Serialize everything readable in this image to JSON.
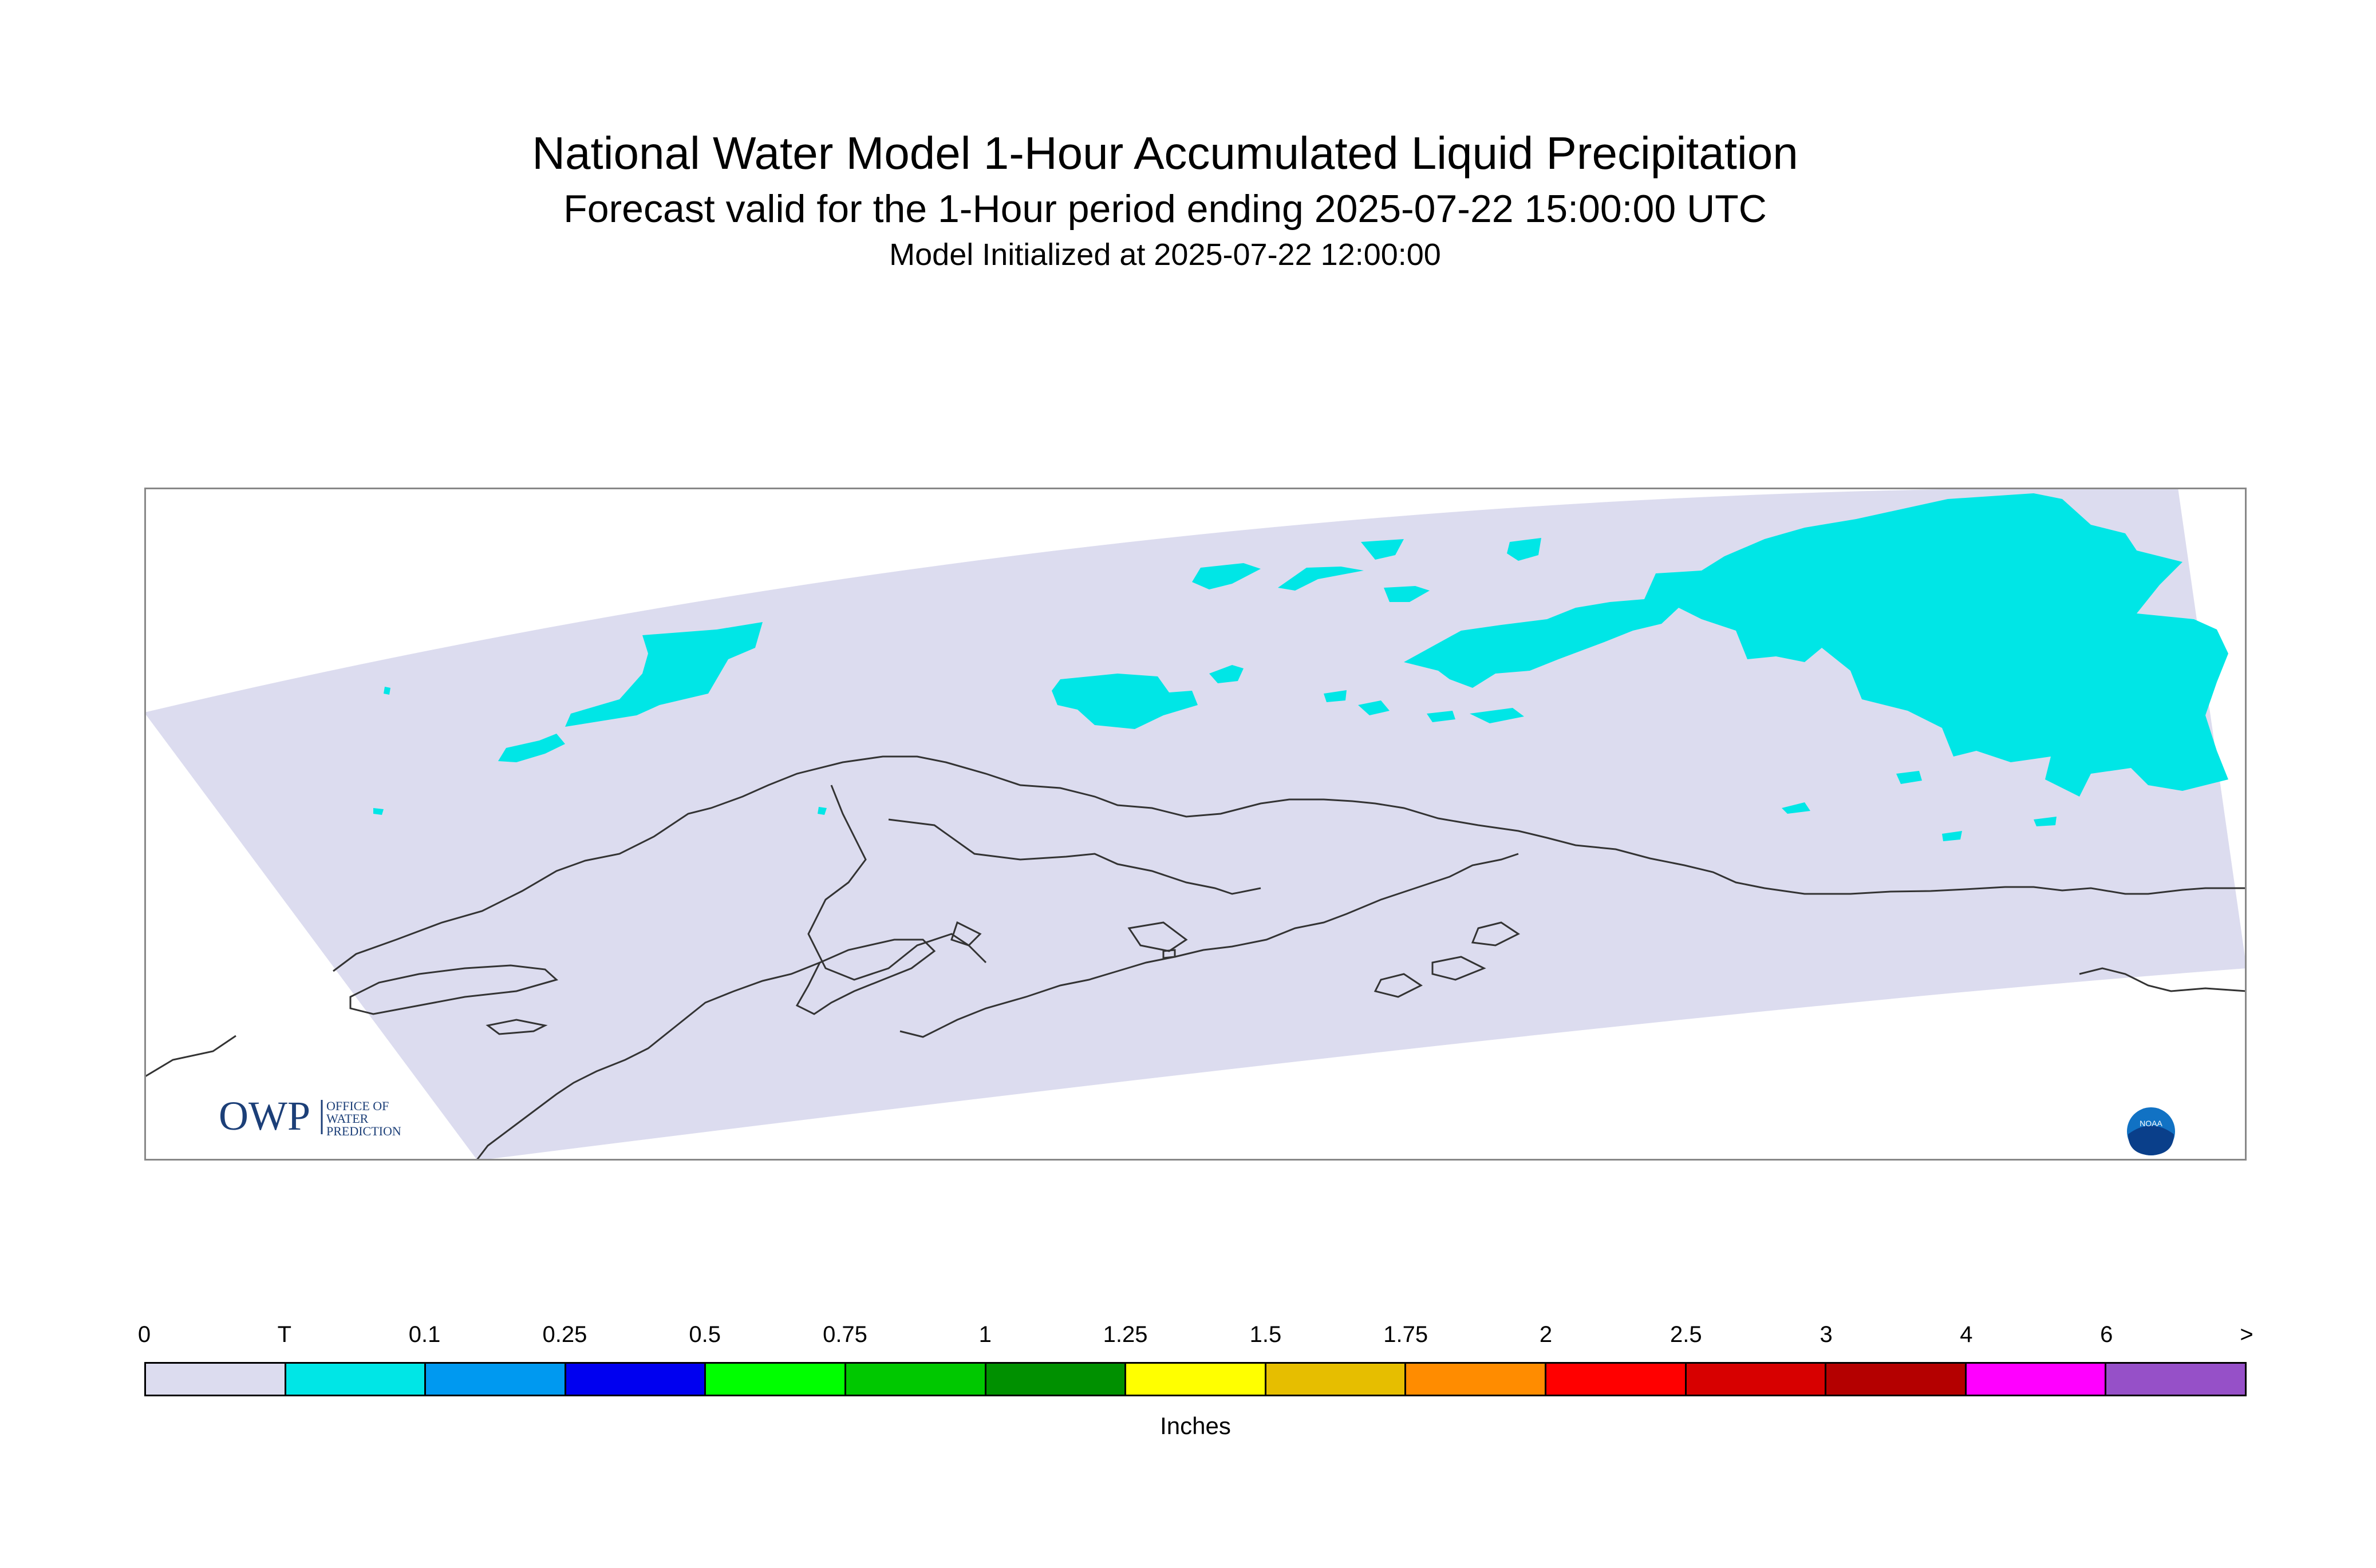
{
  "title": "National Water Model 1-Hour Accumulated Liquid Precipitation",
  "subtitle": "Forecast valid for the 1-Hour period ending 2025-07-22 15:00:00 UTC",
  "init_line": "Model Initialized at 2025-07-22 12:00:00",
  "map": {
    "domain_fill": "#dcdcef",
    "precip_fill": "#00e6e6",
    "coastline_color": "#333333",
    "logo_left": {
      "big": "OWP",
      "line1": "OFFICE OF",
      "line2": "WATER",
      "line3": "PREDICTION"
    },
    "logo_right": {
      "text": "NOAA"
    }
  },
  "legend": {
    "units": "Inches",
    "ticks": [
      "0",
      "T",
      "0.1",
      "0.25",
      "0.5",
      "0.75",
      "1",
      "1.25",
      "1.5",
      "1.75",
      "2",
      "2.5",
      "3",
      "4",
      "6",
      ">"
    ],
    "colors": [
      "#dcdcef",
      "#00e6e6",
      "#0099f0",
      "#0000f0",
      "#00ff00",
      "#00c800",
      "#009000",
      "#ffff00",
      "#e6be00",
      "#ff8c00",
      "#ff0000",
      "#d70000",
      "#b40000",
      "#ff00ff",
      "#9650c8"
    ]
  }
}
